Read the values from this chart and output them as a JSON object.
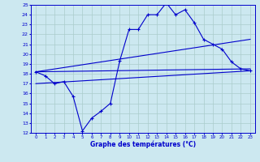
{
  "xlabel": "Graphe des températures (°C)",
  "bg_color": "#cce8f0",
  "grid_color": "#aacccc",
  "line_color": "#0000cc",
  "xlim": [
    -0.5,
    23.5
  ],
  "ylim": [
    12,
    25
  ],
  "xticks": [
    0,
    1,
    2,
    3,
    4,
    5,
    6,
    7,
    8,
    9,
    10,
    11,
    12,
    13,
    14,
    15,
    16,
    17,
    18,
    19,
    20,
    21,
    22,
    23
  ],
  "yticks": [
    12,
    13,
    14,
    15,
    16,
    17,
    18,
    19,
    20,
    21,
    22,
    23,
    24,
    25
  ],
  "line1_x": [
    0,
    1,
    2,
    3,
    4,
    5,
    6,
    7,
    8,
    9,
    10,
    11,
    12,
    13,
    14,
    15,
    16,
    17,
    18,
    19,
    20,
    21,
    22,
    23
  ],
  "line1_y": [
    18.2,
    17.8,
    17.0,
    17.2,
    15.7,
    12.2,
    13.5,
    14.2,
    15.0,
    19.3,
    22.5,
    22.5,
    24.0,
    24.0,
    25.2,
    24.0,
    24.5,
    23.2,
    21.5,
    21.0,
    20.5,
    19.2,
    18.5,
    18.3
  ],
  "line2_x": [
    0,
    23
  ],
  "line2_y": [
    17.0,
    18.3
  ],
  "line3_x": [
    0,
    23
  ],
  "line3_y": [
    18.2,
    18.5
  ],
  "line4_x": [
    0,
    23
  ],
  "line4_y": [
    18.2,
    21.5
  ]
}
